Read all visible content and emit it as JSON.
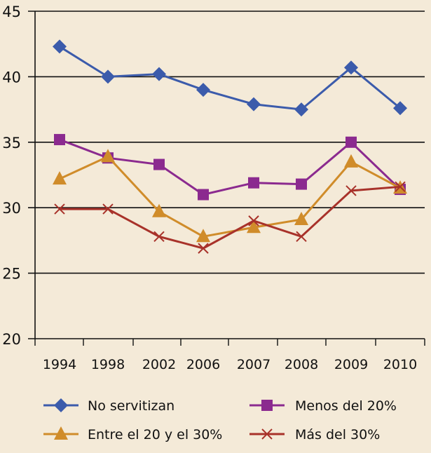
{
  "chart_data": {
    "type": "line",
    "categories": [
      "1994",
      "1998",
      "2002",
      "2006",
      "2007",
      "2008",
      "2009",
      "2010"
    ],
    "ylim": [
      20,
      45
    ],
    "yticks": [
      20,
      25,
      30,
      35,
      40,
      45
    ],
    "grid": "horizontal",
    "legend_position": "bottom",
    "series": [
      {
        "name": "No servitizan",
        "color": "#3b5bab",
        "marker": "diamond",
        "values": [
          42.3,
          40.0,
          40.2,
          39.0,
          37.9,
          37.5,
          40.7,
          37.6
        ]
      },
      {
        "name": "Menos del 20%",
        "color": "#8b2a8f",
        "marker": "square",
        "values": [
          35.2,
          33.8,
          33.3,
          31.0,
          31.9,
          31.8,
          35.0,
          31.4
        ]
      },
      {
        "name": "Entre el 20 y el 30%",
        "color": "#d08c2a",
        "marker": "triangle",
        "values": [
          32.2,
          33.9,
          29.7,
          27.8,
          28.5,
          29.1,
          33.5,
          31.5
        ]
      },
      {
        "name": "Más del 30%",
        "color": "#a8322a",
        "marker": "x",
        "values": [
          29.9,
          29.9,
          27.8,
          26.9,
          29.0,
          27.8,
          31.3,
          31.6
        ]
      }
    ]
  }
}
